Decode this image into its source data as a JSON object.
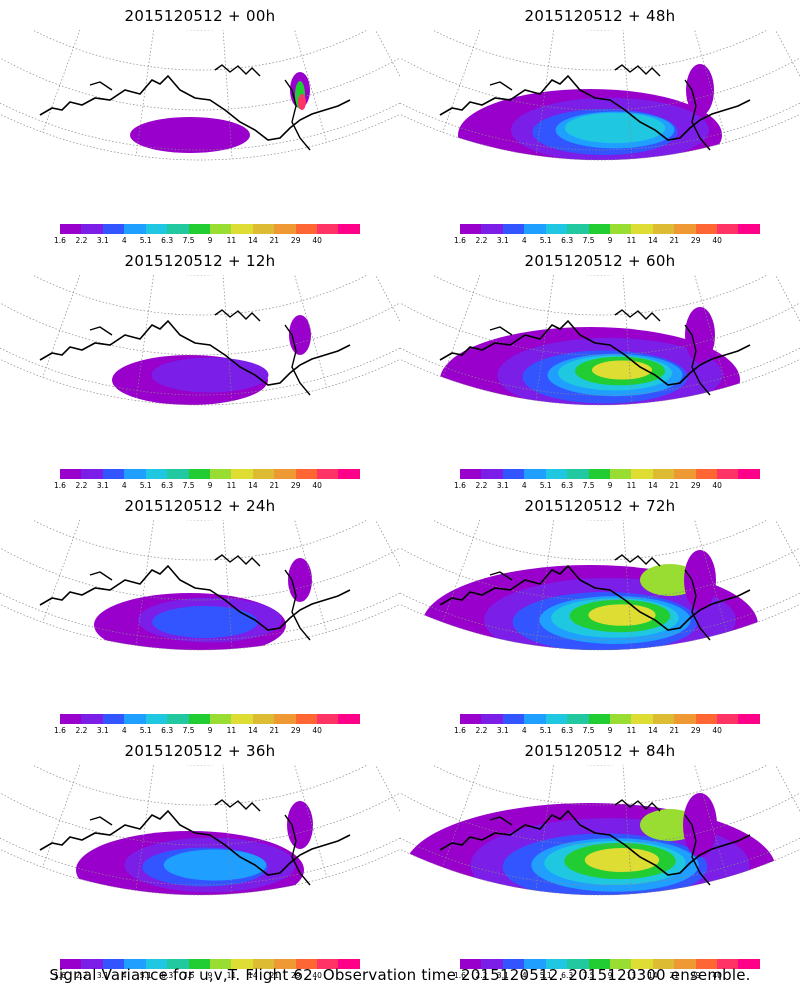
{
  "panels": [
    {
      "title": "2015120512 + 00h",
      "intensity": 0
    },
    {
      "title": "2015120512 + 48h",
      "intensity": 4
    },
    {
      "title": "2015120512 + 12h",
      "intensity": 1
    },
    {
      "title": "2015120512 + 60h",
      "intensity": 5
    },
    {
      "title": "2015120512 + 24h",
      "intensity": 2
    },
    {
      "title": "2015120512 + 72h",
      "intensity": 6
    },
    {
      "title": "2015120512 + 36h",
      "intensity": 3
    },
    {
      "title": "2015120512 + 84h",
      "intensity": 7
    }
  ],
  "colorbar": {
    "labels": [
      "1.6",
      "2.2",
      "3.1",
      "4",
      "5.1",
      "6.3",
      "7.5",
      "9",
      "11",
      "14",
      "21",
      "29",
      "40"
    ],
    "colors": [
      "#9900cc",
      "#7a1ee8",
      "#3355ff",
      "#1f9fff",
      "#1fc8e0",
      "#22c9a0",
      "#22cc33",
      "#99dd33",
      "#dddd33",
      "#ddbb33",
      "#ee9933",
      "#ff6633",
      "#ff3366",
      "#ff0088"
    ]
  },
  "caption": "Signal Variance for u,v,T. Flight 62. Observation time 2015120512. 2015120300 ensemble."
}
